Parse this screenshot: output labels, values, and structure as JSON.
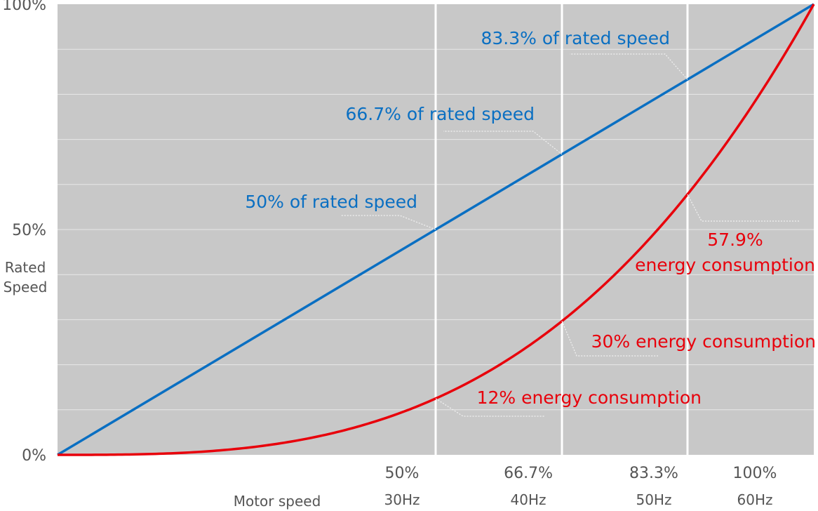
{
  "chart_data": {
    "type": "line",
    "title": "",
    "xlabel": "Motor speed",
    "ylabel": "Rated\nSpeed",
    "xlim": [
      0,
      100
    ],
    "ylim": [
      0,
      100
    ],
    "grid": true,
    "colors": {
      "plot_bg": "#c8c8c8",
      "blue": "#0a6fc2",
      "red": "#e8000b",
      "grid": "#e8e8e8",
      "major_grid": "#ffffff"
    },
    "y_ticks": [
      {
        "value": 0,
        "label": "0%"
      },
      {
        "value": 50,
        "label": "50%"
      },
      {
        "value": 100,
        "label": "100%"
      }
    ],
    "x_ticks": [
      {
        "value": 50,
        "label": "50%",
        "sublabel": "30Hz"
      },
      {
        "value": 66.7,
        "label": "66.7%",
        "sublabel": "40Hz"
      },
      {
        "value": 83.3,
        "label": "83.3%",
        "sublabel": "50Hz"
      },
      {
        "value": 100,
        "label": "100%",
        "sublabel": "60Hz"
      }
    ],
    "series": [
      {
        "color": "#0a6fc2",
        "x": [
          0,
          50,
          66.7,
          83.3,
          100
        ],
        "y": [
          0,
          50,
          66.7,
          83.3,
          100
        ]
      },
      {
        "color": "#e8000b",
        "x": [
          0,
          10,
          20,
          30,
          40,
          50,
          60,
          66.7,
          70,
          80,
          83.3,
          90,
          100
        ],
        "y": [
          0,
          0.1,
          0.8,
          2.7,
          6.4,
          12.5,
          21.6,
          29.7,
          34.3,
          51.2,
          57.8,
          72.9,
          100
        ]
      }
    ],
    "annotations": [
      {
        "text": "83.3% of rated speed",
        "series": 0,
        "x": 83.3,
        "y": 83.3,
        "color": "blue"
      },
      {
        "text": "66.7% of rated speed",
        "series": 0,
        "x": 66.7,
        "y": 66.7,
        "color": "blue"
      },
      {
        "text": "50% of rated speed",
        "series": 0,
        "x": 50,
        "y": 50,
        "color": "blue"
      },
      {
        "text": "57.9%",
        "text2": "energy consumption",
        "series": 1,
        "x": 83.3,
        "y": 57.9,
        "color": "red"
      },
      {
        "text": "30% energy consumption",
        "series": 1,
        "x": 66.7,
        "y": 30,
        "color": "red"
      },
      {
        "text": "12% energy consumption",
        "series": 1,
        "x": 50,
        "y": 12,
        "color": "red"
      }
    ]
  }
}
